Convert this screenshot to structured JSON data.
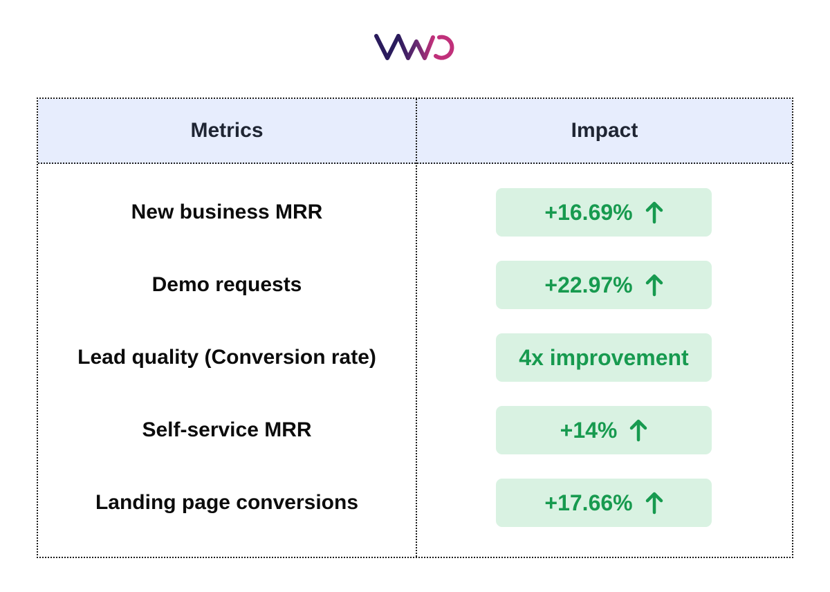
{
  "brand": {
    "logo_text": "VWO",
    "colors": {
      "dark": "#2a1b5c",
      "accent": "#c0307a"
    }
  },
  "table": {
    "headers": {
      "metrics": "Metrics",
      "impact": "Impact"
    },
    "rows": [
      {
        "metric": "New business MRR",
        "impact": "+16.69%",
        "arrow": "up-arrow-icon"
      },
      {
        "metric": "Demo requests",
        "impact": "+22.97%",
        "arrow": "up-arrow-icon"
      },
      {
        "metric": "Lead quality (Conversion rate)",
        "impact": "4x improvement",
        "arrow": null
      },
      {
        "metric": "Self-service MRR",
        "impact": "+14%",
        "arrow": "up-arrow-icon"
      },
      {
        "metric": "Landing page conversions",
        "impact": "+17.66%",
        "arrow": "up-arrow-icon"
      }
    ],
    "colors": {
      "header_bg": "#e7edfd",
      "pill_bg": "#d9f2e2",
      "pill_text": "#179a4f"
    }
  }
}
